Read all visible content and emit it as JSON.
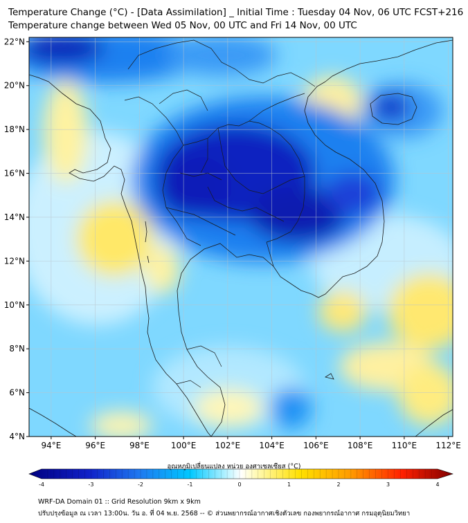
{
  "title_line1": "Temperature Change (°C) - [Data Assimilation] _ Initial Time : Tuesday 04 Nov, 06 UTC FCST+216",
  "title_line2": "Temperature change between Wed 05 Nov, 00 UTC and Fri 14 Nov, 00 UTC",
  "map": {
    "lat_ticks": [
      "22°N",
      "20°N",
      "18°N",
      "16°N",
      "14°N",
      "12°N",
      "10°N",
      "8°N",
      "6°N",
      "4°N"
    ],
    "lon_ticks": [
      "94°E",
      "96°E",
      "98°E",
      "100°E",
      "102°E",
      "104°E",
      "106°E",
      "108°E",
      "110°E",
      "112°E"
    ],
    "lat_range": [
      4,
      22.2
    ],
    "lon_range": [
      93,
      112.2
    ]
  },
  "colorbar": {
    "title": "อุณหภูมิเปลี่ยนแปลง หน่วย องศาเซลเซียส (°C)",
    "ticks": [
      "-4",
      "-3",
      "-2",
      "-1",
      "0",
      "1",
      "2",
      "3",
      "4"
    ],
    "range": [
      -4,
      4
    ],
    "colors": {
      "min": "#000080",
      "mid_low": "#1e90ff",
      "low": "#00e5ff",
      "zero": "#ffffff",
      "high": "#ffe000",
      "mid_high": "#ff6a00",
      "max": "#800000"
    }
  },
  "footer_line1": "WRF-DA Domain 01 :: Grid Resolution 9km x 9km",
  "footer_line2": "ปรับปรุงข้อมูล ณ เวลา 13:00น. วัน อ. ที่ 04 พ.ย. 2568 -- © ส่วนพยากรณ์อากาศเชิงตัวเลข กองพยากรณ์อากาศ กรมอุตุนิยมวิทยา"
}
